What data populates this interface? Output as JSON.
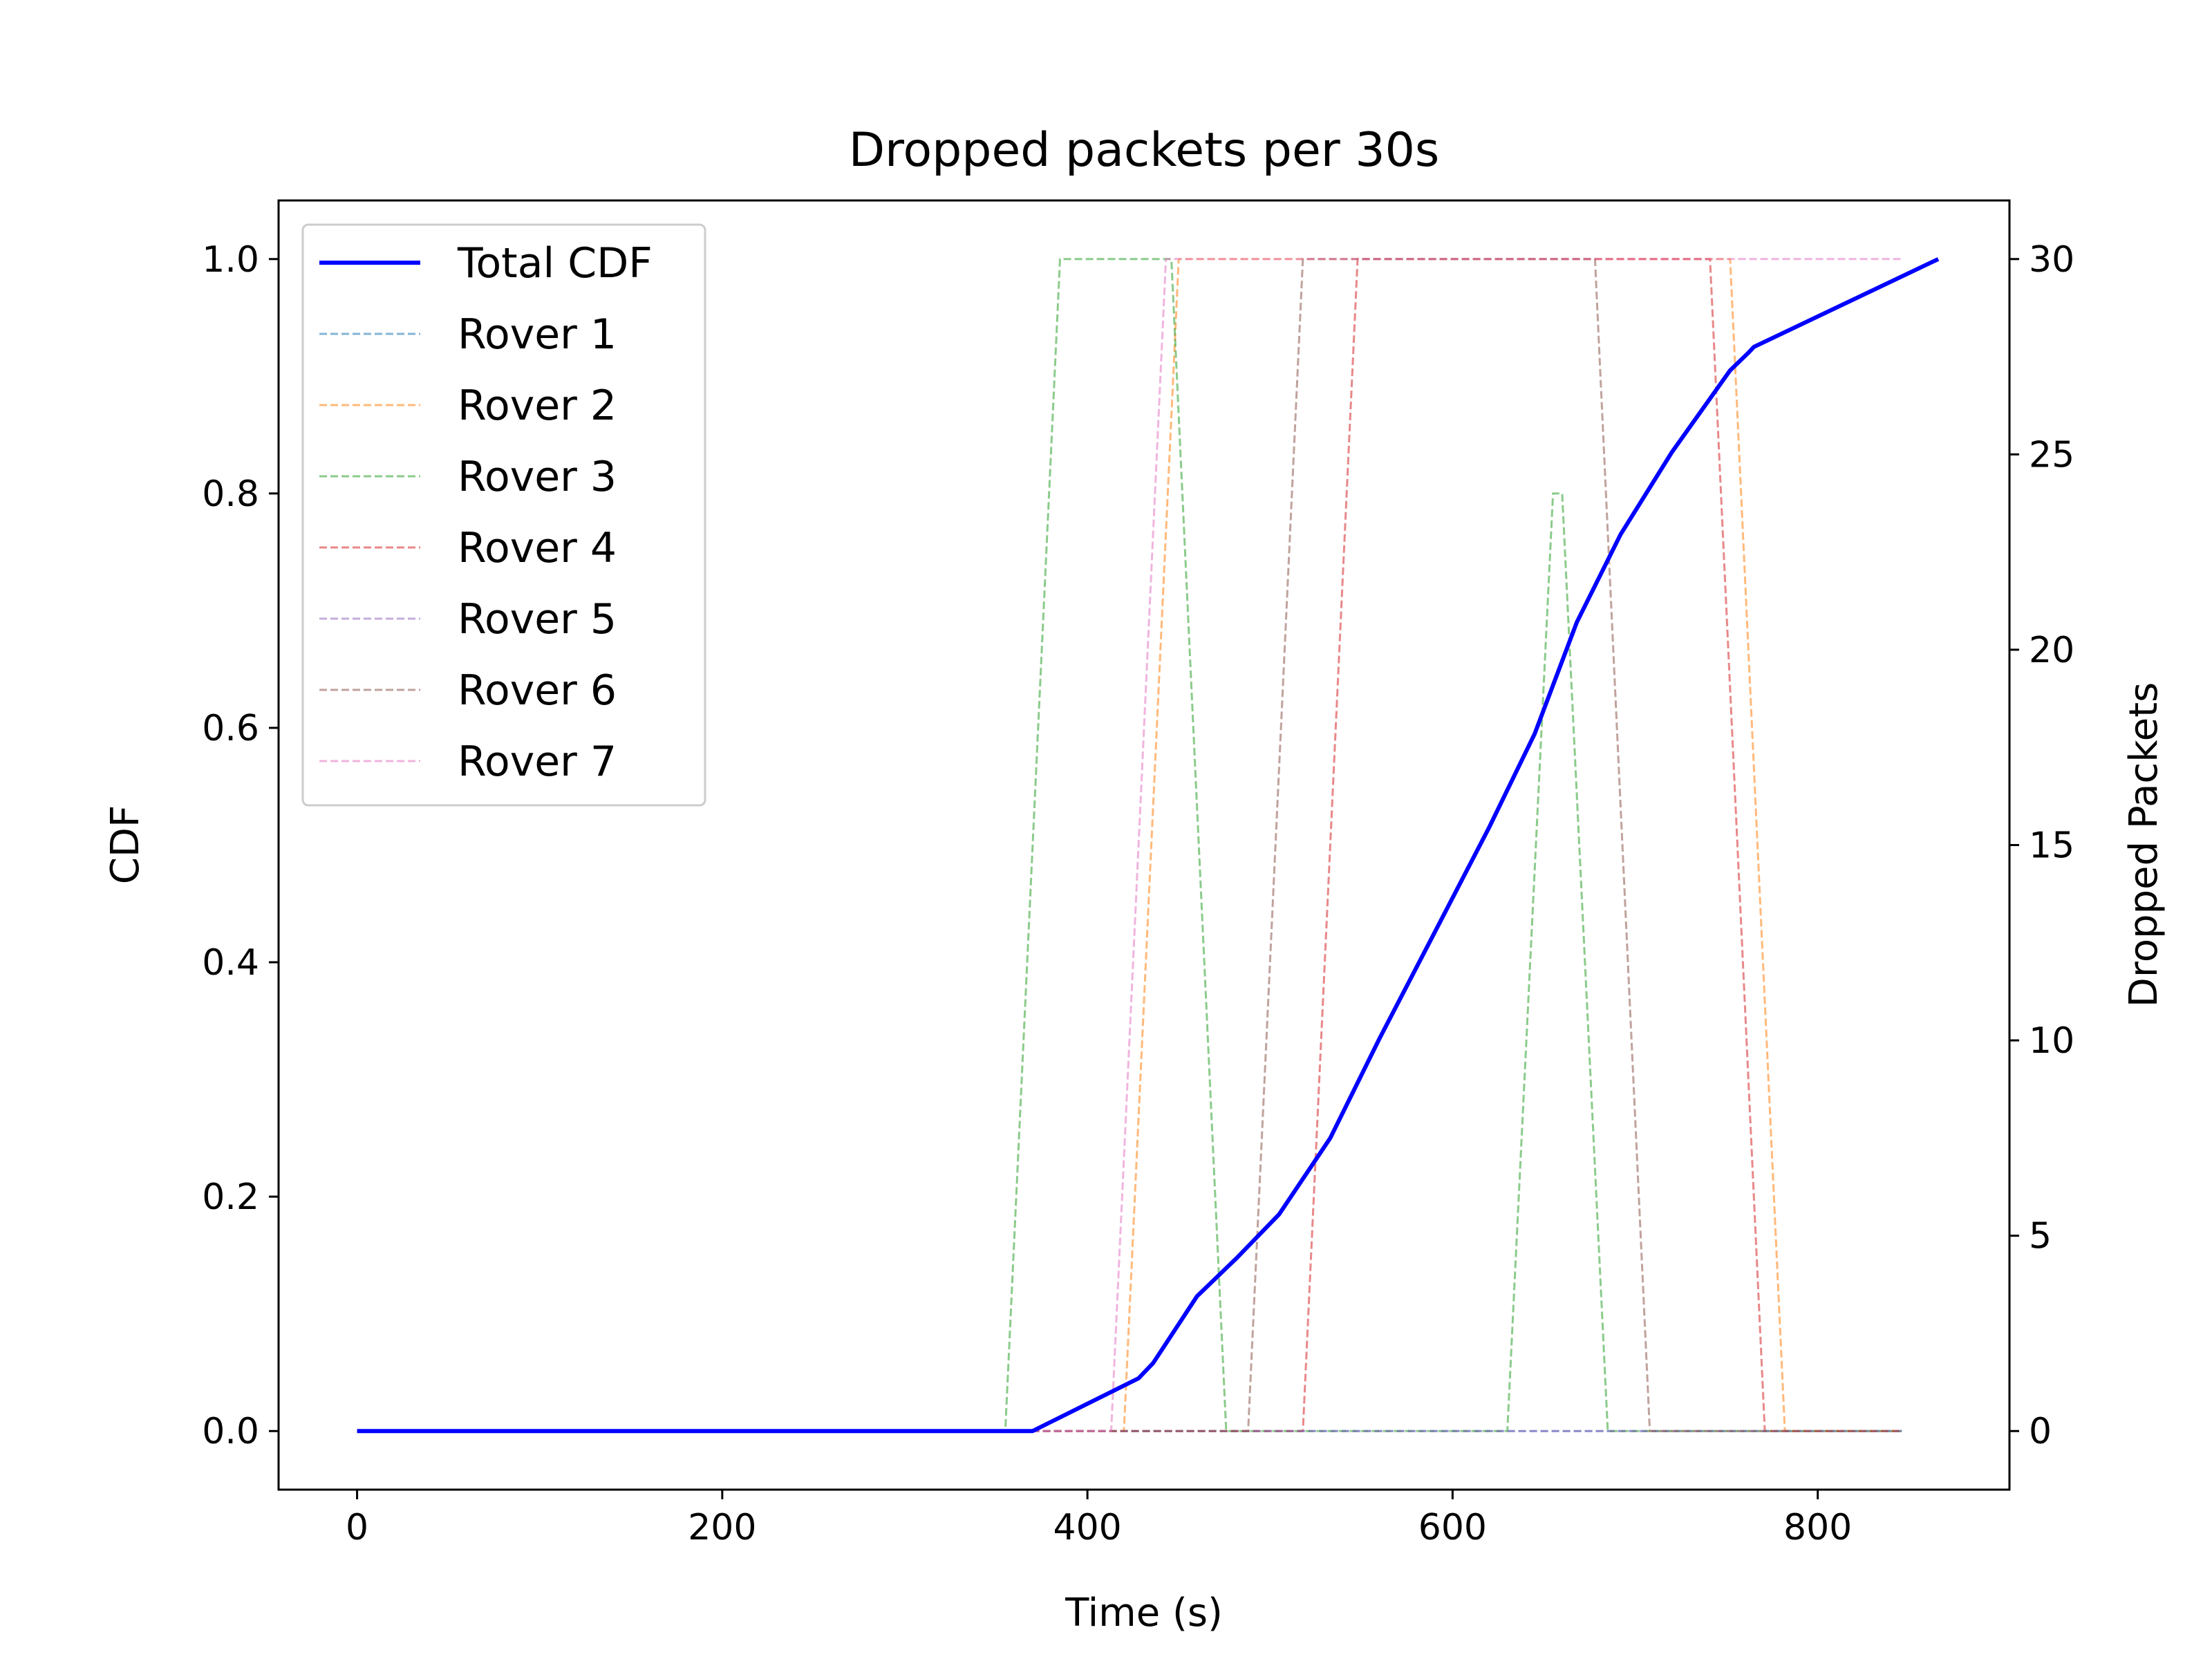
{
  "chart_data": {
    "type": "line",
    "title": "Dropped packets per 30s",
    "xlabel": "Time (s)",
    "ylabel_left": "CDF",
    "ylabel_right": "Dropped Packets",
    "xlim": [
      -43,
      905
    ],
    "ylim_left": [
      -0.05,
      1.05
    ],
    "ylim_right": [
      -1.5,
      31.5
    ],
    "x_ticks": [
      0,
      200,
      400,
      600,
      800
    ],
    "y_left_ticks": [
      "0.0",
      "0.2",
      "0.4",
      "0.6",
      "0.8",
      "1.0"
    ],
    "y_right_ticks": [
      "0",
      "5",
      "10",
      "15",
      "20",
      "25",
      "30"
    ],
    "legend_position": "upper left",
    "grid": false,
    "cdf_series": {
      "name": "Total CDF",
      "color": "#0000ff",
      "x": [
        0,
        370,
        428,
        436,
        460,
        482,
        505,
        533,
        560,
        590,
        620,
        645,
        668,
        692,
        720,
        752,
        762,
        765,
        866
      ],
      "y": [
        0.0,
        0.0,
        0.045,
        0.058,
        0.115,
        0.148,
        0.185,
        0.25,
        0.335,
        0.425,
        0.515,
        0.595,
        0.69,
        0.765,
        0.835,
        0.905,
        0.92,
        0.925,
        1.0
      ]
    },
    "rover_series": [
      {
        "name": "Rover 1",
        "color": "#1f77b4",
        "x": [
          0,
          846
        ],
        "y": [
          0,
          0
        ]
      },
      {
        "name": "Rover 2",
        "color": "#ff7f0e",
        "x": [
          0,
          420,
          450,
          752,
          782,
          846
        ],
        "y": [
          0,
          0,
          30,
          30,
          0,
          0
        ]
      },
      {
        "name": "Rover 3",
        "color": "#2ca02c",
        "x": [
          0,
          355,
          385,
          446,
          476,
          630,
          655,
          660,
          685,
          846
        ],
        "y": [
          0,
          0,
          30,
          30,
          0,
          0,
          24,
          24,
          0,
          0
        ]
      },
      {
        "name": "Rover 4",
        "color": "#d62728",
        "x": [
          0,
          518,
          548,
          741,
          771,
          846
        ],
        "y": [
          0,
          0,
          30,
          30,
          0,
          0
        ]
      },
      {
        "name": "Rover 5",
        "color": "#9467bd",
        "x": [
          0,
          846
        ],
        "y": [
          0,
          0
        ]
      },
      {
        "name": "Rover 6",
        "color": "#8c564b",
        "x": [
          0,
          488,
          518,
          678,
          708,
          846
        ],
        "y": [
          0,
          0,
          30,
          30,
          0,
          0
        ]
      },
      {
        "name": "Rover 7",
        "color": "#e377c2",
        "x": [
          0,
          413,
          443,
          846
        ],
        "y": [
          0,
          0,
          30,
          30
        ]
      }
    ]
  }
}
